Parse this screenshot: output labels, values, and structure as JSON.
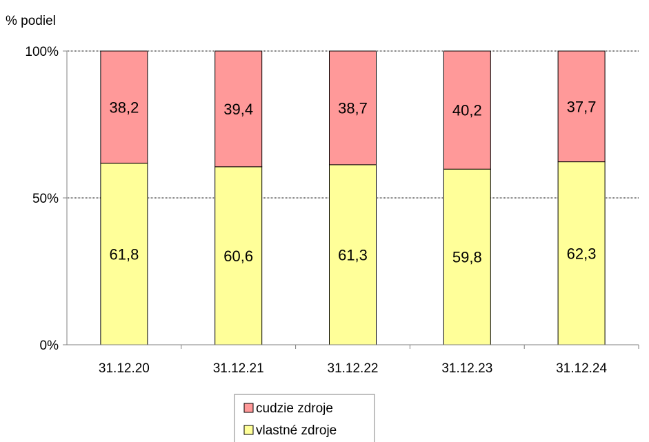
{
  "chart_data": {
    "type": "bar",
    "stacked": true,
    "ylabel": "% podiel",
    "ylim": [
      0,
      100
    ],
    "yticks": [
      "0%",
      "50%",
      "100%"
    ],
    "categories": [
      "31.12.20",
      "31.12.21",
      "31.12.22",
      "31.12.23",
      "31.12.24"
    ],
    "series": [
      {
        "name": "vlastné zdroje",
        "values": [
          61.8,
          60.6,
          61.3,
          59.8,
          62.3
        ],
        "labels": [
          "61,8",
          "60,6",
          "61,3",
          "59,8",
          "62,3"
        ],
        "color": "#ffff99"
      },
      {
        "name": "cudzie zdroje",
        "values": [
          38.2,
          39.4,
          38.7,
          40.2,
          37.7
        ],
        "labels": [
          "38,2",
          "39,4",
          "38,7",
          "40,2",
          "37,7"
        ],
        "color": "#ff9999"
      }
    ],
    "grid": "horizontal-dashed",
    "legend_position": "bottom",
    "legend_order": [
      "cudzie zdroje",
      "vlastné zdroje"
    ]
  }
}
